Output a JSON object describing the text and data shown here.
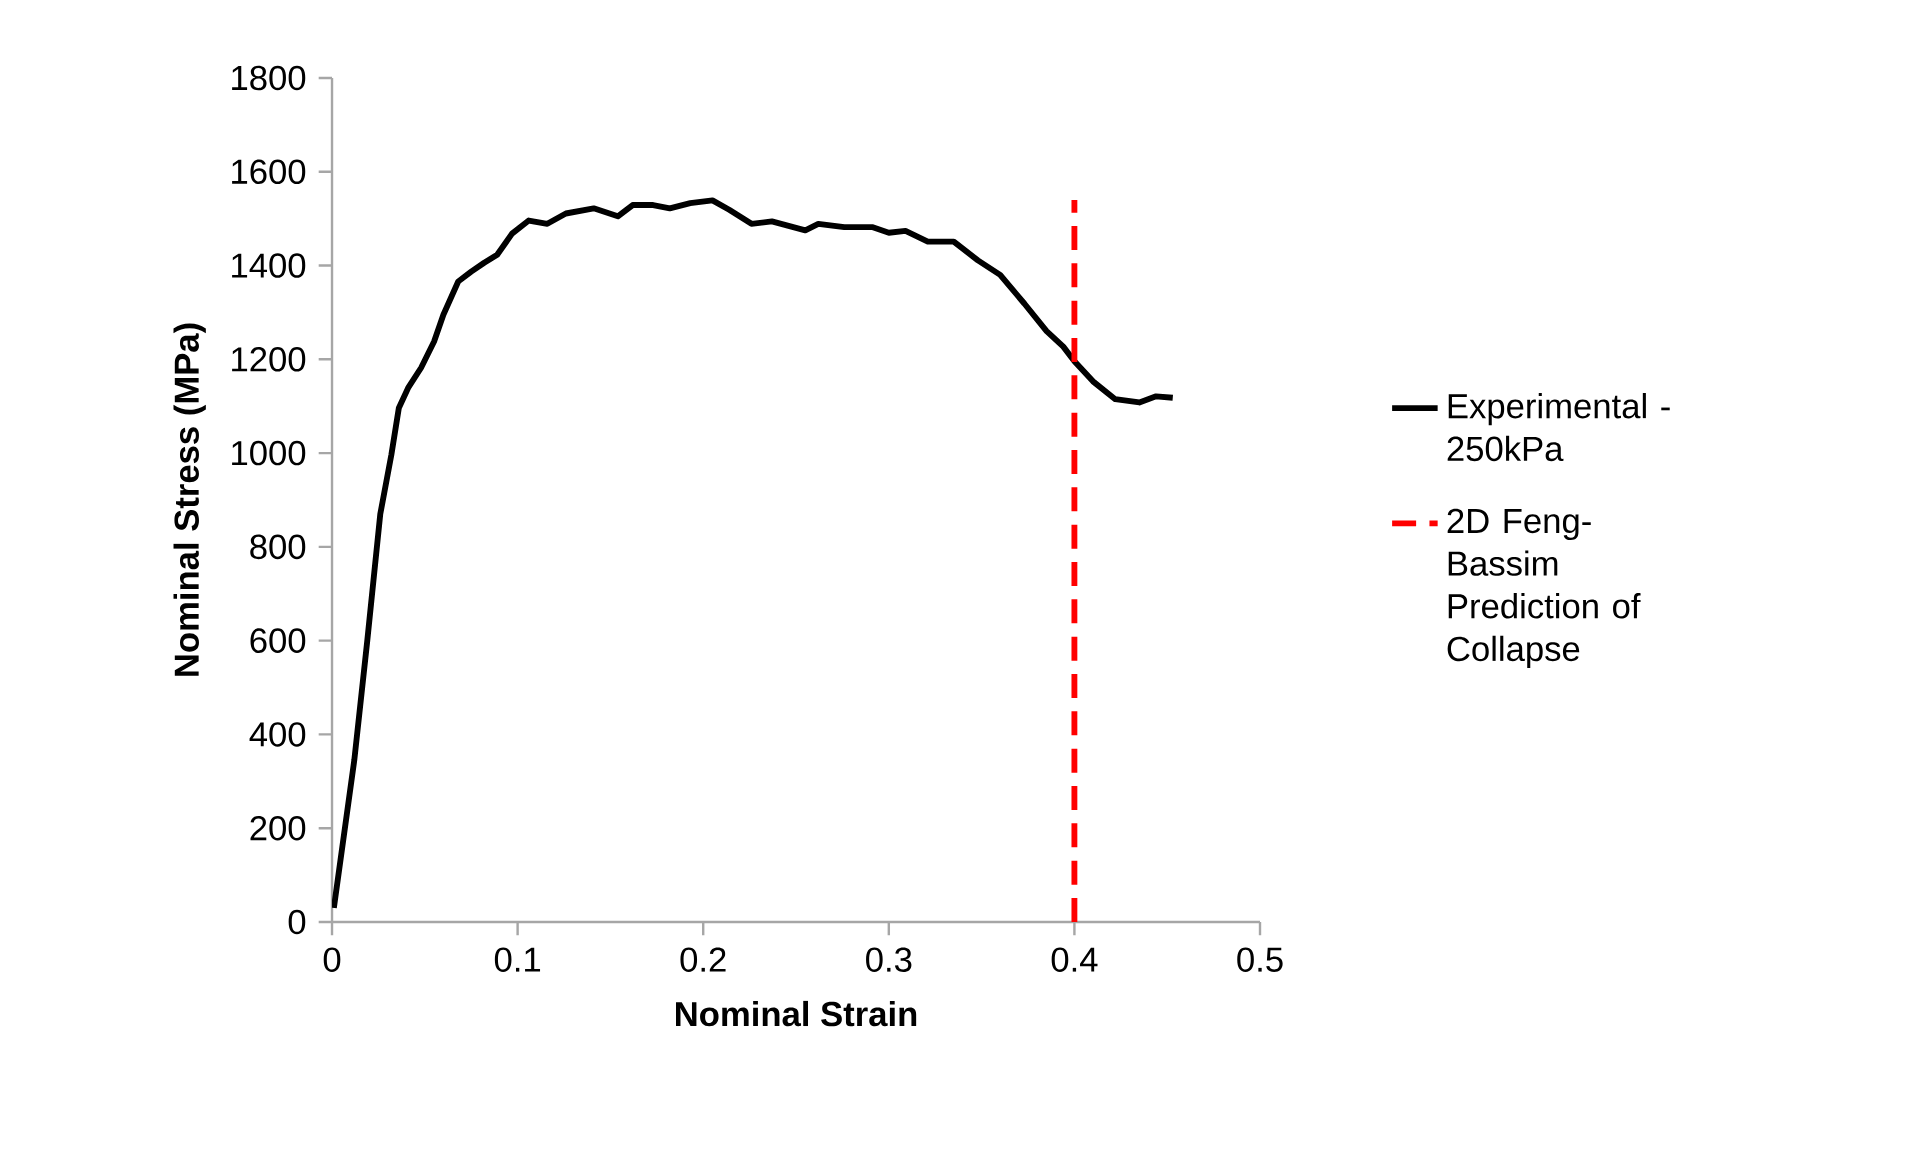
{
  "chart_data": {
    "type": "line",
    "xlabel": "Nominal Strain",
    "ylabel": "Nominal Stress (MPa)",
    "xlim": [
      0,
      0.5
    ],
    "xticks": [
      0,
      0.1,
      0.2,
      0.3,
      0.4,
      0.5
    ],
    "ylim": [
      0,
      1800
    ],
    "yticks": [
      0,
      200,
      400,
      600,
      800,
      1000,
      1200,
      1400,
      1600,
      1800
    ],
    "grid": false,
    "legend": "right",
    "marker": "none",
    "series": [
      {
        "name": "Experimental - 250kPa",
        "color": "#000000",
        "line_style": "solid",
        "x": [
          0.001,
          0.012,
          0.019,
          0.026,
          0.032,
          0.036,
          0.041,
          0.048,
          0.055,
          0.06,
          0.068,
          0.075,
          0.082,
          0.089,
          0.097,
          0.106,
          0.116,
          0.126,
          0.141,
          0.154,
          0.162,
          0.173,
          0.182,
          0.193,
          0.205,
          0.214,
          0.226,
          0.237,
          0.255,
          0.262,
          0.276,
          0.291,
          0.3,
          0.309,
          0.321,
          0.335,
          0.348,
          0.36,
          0.373,
          0.385,
          0.394,
          0.4,
          0.41,
          0.422,
          0.435,
          0.444,
          0.453
        ],
        "values": [
          30,
          345,
          600,
          870,
          997,
          1096,
          1139,
          1182,
          1238,
          1295,
          1366,
          1387,
          1406,
          1423,
          1468,
          1496,
          1489,
          1511,
          1522,
          1505,
          1529,
          1529,
          1522,
          1533,
          1539,
          1519,
          1489,
          1494,
          1475,
          1489,
          1482,
          1482,
          1470,
          1474,
          1451,
          1451,
          1411,
          1380,
          1319,
          1260,
          1227,
          1196,
          1153,
          1115,
          1108,
          1121,
          1118
        ]
      },
      {
        "name": "2D Feng-Bassim Prediction of Collapse",
        "color": "#ff0000",
        "line_style": "dashed",
        "x": [
          0.4,
          0.4
        ],
        "values": [
          0,
          1540
        ]
      }
    ]
  }
}
